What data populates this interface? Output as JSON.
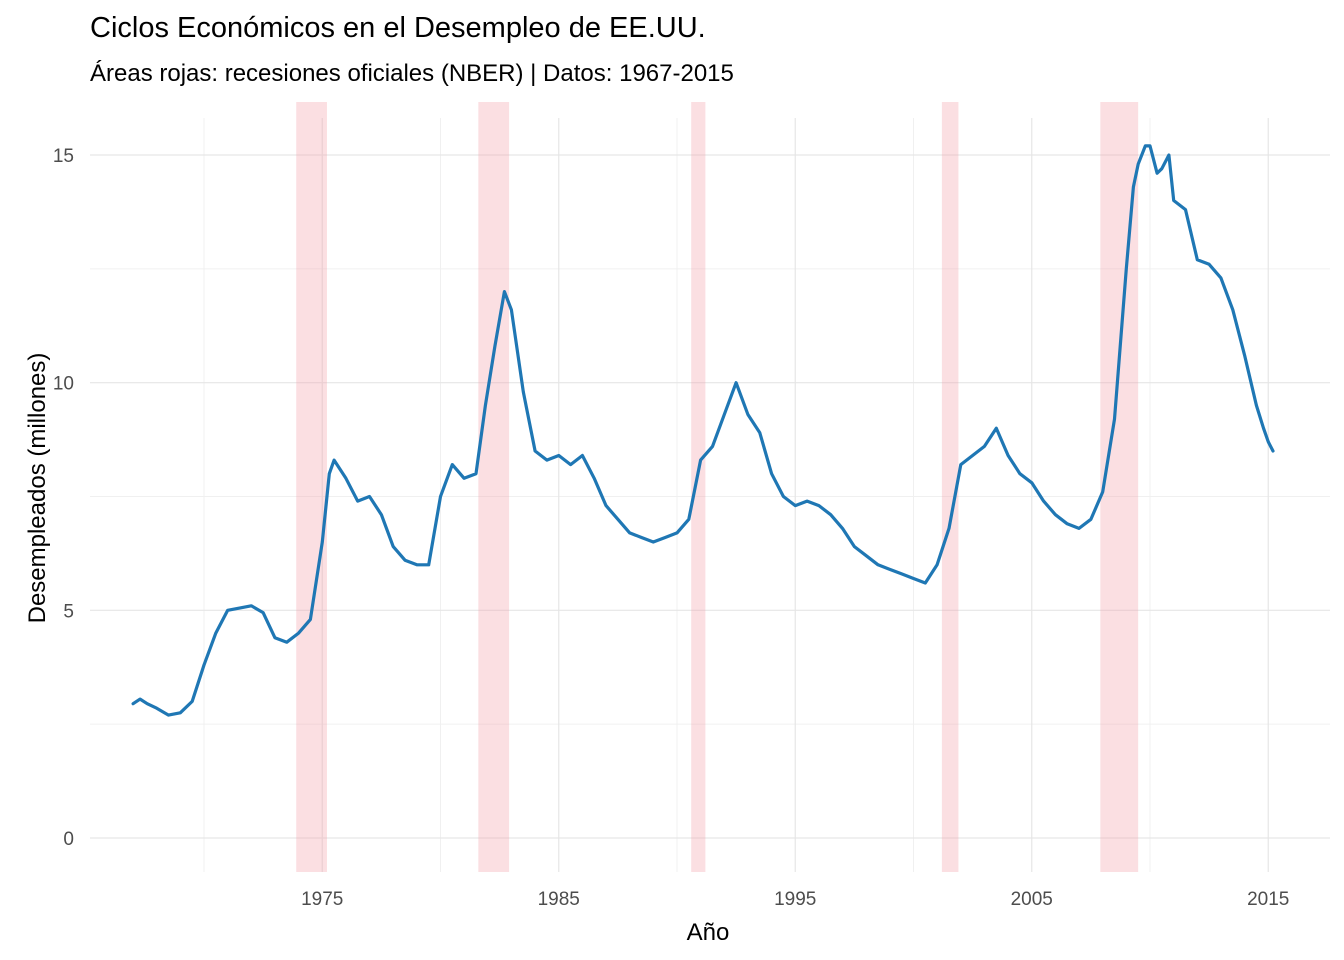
{
  "chart_data": {
    "type": "line",
    "title": "Ciclos Económicos en el Desempleo de EE.UU.",
    "subtitle": "Áreas rojas: recesiones oficiales (NBER) | Datos: 1967-2015",
    "xlabel": "Año",
    "ylabel": "Desempleados (millones)",
    "xlim": [
      1967.0,
      2015.4
    ],
    "ylim": [
      0,
      15.3
    ],
    "x_ticks": [
      1975,
      1985,
      1995,
      2005,
      2015
    ],
    "y_ticks": [
      0,
      5,
      10,
      15
    ],
    "grid": true,
    "legend": "none",
    "colors": {
      "line": "#1f77b4",
      "recession": "#f4a3ab"
    },
    "recessions": [
      {
        "start": 1973.9,
        "end": 1975.2
      },
      {
        "start": 1981.6,
        "end": 1982.9
      },
      {
        "start": 1990.6,
        "end": 1991.2
      },
      {
        "start": 2001.2,
        "end": 2001.9
      },
      {
        "start": 2007.9,
        "end": 2009.5
      }
    ],
    "series": [
      {
        "x": [
          1967.0,
          1967.3,
          1967.6,
          1968.0,
          1968.5,
          1969.0,
          1969.5,
          1970.0,
          1970.5,
          1971.0,
          1971.5,
          1972.0,
          1972.5,
          1973.0,
          1973.5,
          1974.0,
          1974.5,
          1975.0,
          1975.3,
          1975.5,
          1976.0,
          1976.5,
          1977.0,
          1977.5,
          1978.0,
          1978.5,
          1979.0,
          1979.5,
          1980.0,
          1980.5,
          1981.0,
          1981.5,
          1981.9,
          1982.3,
          1982.7,
          1983.0,
          1983.5,
          1984.0,
          1984.5,
          1985.0,
          1985.5,
          1986.0,
          1986.5,
          1987.0,
          1987.5,
          1988.0,
          1988.5,
          1989.0,
          1989.5,
          1990.0,
          1990.5,
          1991.0,
          1991.5,
          1992.0,
          1992.5,
          1993.0,
          1993.5,
          1994.0,
          1994.5,
          1995.0,
          1995.5,
          1996.0,
          1996.5,
          1997.0,
          1997.5,
          1998.0,
          1998.5,
          1999.0,
          1999.5,
          2000.0,
          2000.5,
          2001.0,
          2001.5,
          2002.0,
          2002.5,
          2003.0,
          2003.5,
          2004.0,
          2004.5,
          2005.0,
          2005.5,
          2006.0,
          2006.5,
          2007.0,
          2007.5,
          2008.0,
          2008.5,
          2009.0,
          2009.3,
          2009.5,
          2009.8,
          2010.0,
          2010.3,
          2010.5,
          2010.8,
          2011.0,
          2011.5,
          2012.0,
          2012.5,
          2013.0,
          2013.5,
          2014.0,
          2014.5,
          2014.8,
          2015.0,
          2015.2
        ],
        "y": [
          2.95,
          3.05,
          2.95,
          2.85,
          2.7,
          2.75,
          3.0,
          3.8,
          4.5,
          5.0,
          5.05,
          5.1,
          4.95,
          4.4,
          4.3,
          4.5,
          4.8,
          6.5,
          8.0,
          8.3,
          7.9,
          7.4,
          7.5,
          7.1,
          6.4,
          6.1,
          6.0,
          6.0,
          7.5,
          8.2,
          7.9,
          8.0,
          9.5,
          10.8,
          12.0,
          11.6,
          9.8,
          8.5,
          8.3,
          8.4,
          8.2,
          8.4,
          7.9,
          7.3,
          7.0,
          6.7,
          6.6,
          6.5,
          6.6,
          6.7,
          7.0,
          8.3,
          8.6,
          9.3,
          10.0,
          9.3,
          8.9,
          8.0,
          7.5,
          7.3,
          7.4,
          7.3,
          7.1,
          6.8,
          6.4,
          6.2,
          6.0,
          5.9,
          5.8,
          5.7,
          5.6,
          6.0,
          6.8,
          8.2,
          8.4,
          8.6,
          9.0,
          8.4,
          8.0,
          7.8,
          7.4,
          7.1,
          6.9,
          6.8,
          7.0,
          7.6,
          9.2,
          12.5,
          14.3,
          14.8,
          15.2,
          15.2,
          14.6,
          14.7,
          15.0,
          14.0,
          13.8,
          12.7,
          12.6,
          12.3,
          11.6,
          10.6,
          9.5,
          9.0,
          8.7,
          8.5
        ]
      }
    ]
  }
}
